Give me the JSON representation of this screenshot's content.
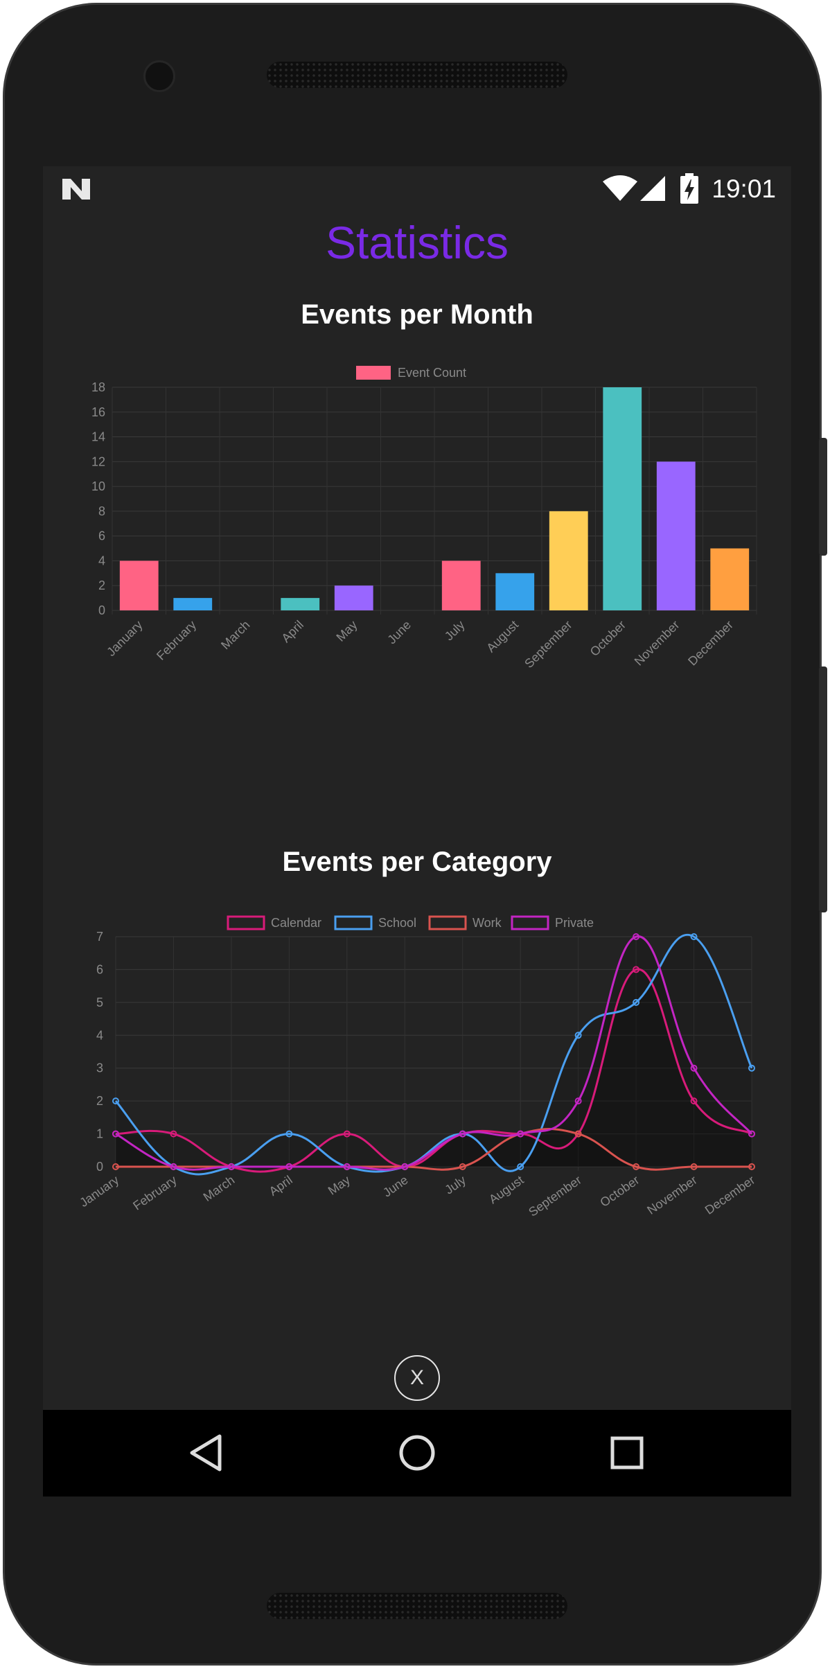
{
  "status": {
    "time": "19:01"
  },
  "page": {
    "title": "Statistics",
    "close_label": "X"
  },
  "chart_data": [
    {
      "type": "bar",
      "title": "Events per Month",
      "legend": [
        "Event Count"
      ],
      "legend_position": "top",
      "categories": [
        "January",
        "February",
        "March",
        "April",
        "May",
        "June",
        "July",
        "August",
        "September",
        "October",
        "November",
        "December"
      ],
      "series": [
        {
          "name": "Event Count",
          "values": [
            4,
            1,
            0,
            1,
            2,
            0,
            4,
            3,
            8,
            18,
            12,
            5
          ]
        }
      ],
      "colors": [
        "#ff6384",
        "#36a2eb",
        "#ffce56",
        "#4bc0c0",
        "#9966ff",
        "#ff9f40",
        "#ff6384",
        "#36a2eb",
        "#ffce56",
        "#4bc0c0",
        "#9966ff",
        "#ff9f40"
      ],
      "yticks": [
        "0",
        "2",
        "4",
        "6",
        "8",
        "10",
        "12",
        "14",
        "16",
        "18"
      ],
      "ylim": [
        0,
        18
      ],
      "grid": true
    },
    {
      "type": "line",
      "title": "Events per Category",
      "legend_position": "top",
      "categories": [
        "January",
        "February",
        "March",
        "April",
        "May",
        "June",
        "July",
        "August",
        "September",
        "October",
        "November",
        "December"
      ],
      "series": [
        {
          "name": "Calendar",
          "color": "#d81b7a",
          "values": [
            1,
            1,
            0,
            0,
            1,
            0,
            1,
            1,
            1,
            6,
            2,
            1
          ]
        },
        {
          "name": "School",
          "color": "#4a9ff0",
          "values": [
            2,
            0,
            0,
            1,
            0,
            0,
            1,
            0,
            4,
            5,
            7,
            3
          ]
        },
        {
          "name": "Work",
          "color": "#d9534f",
          "values": [
            0,
            0,
            0,
            0,
            0,
            0,
            0,
            1,
            1,
            0,
            0,
            0
          ]
        },
        {
          "name": "Private",
          "color": "#c325c3",
          "values": [
            1,
            0,
            0,
            0,
            0,
            0,
            1,
            1,
            2,
            7,
            3,
            1
          ]
        }
      ],
      "yticks": [
        "0",
        "1",
        "2",
        "3",
        "4",
        "5",
        "6",
        "7"
      ],
      "ylim": [
        0,
        7
      ],
      "grid": true
    }
  ]
}
